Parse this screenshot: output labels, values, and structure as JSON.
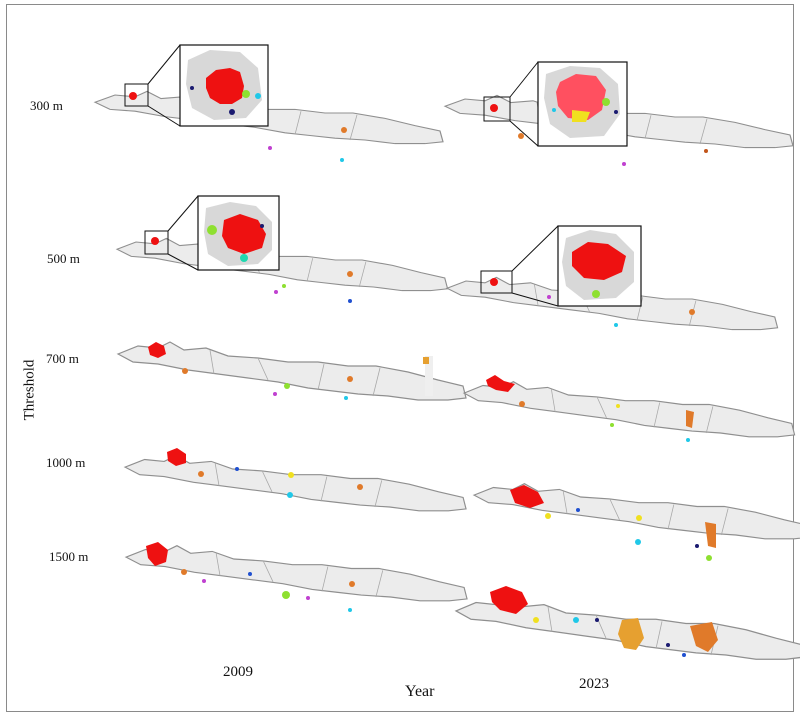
{
  "figure": {
    "y_axis_label": "Threshold",
    "x_axis_label": "Year",
    "years": [
      "2009",
      "2023"
    ],
    "thresholds": [
      "300 m",
      "500 m",
      "700 m",
      "1000 m",
      "1500 m"
    ]
  },
  "colors": {
    "land": "#ececec",
    "border": "#8f8f8f",
    "main_cluster": "#ee1111",
    "orange": "#e07a2a",
    "yellow": "#f0e020",
    "green": "#8ee030",
    "cyan": "#20c8e8",
    "blue": "#2050d0",
    "magenta": "#c040d0",
    "navy": "#1a1a70",
    "teal": "#20d8b0"
  }
}
